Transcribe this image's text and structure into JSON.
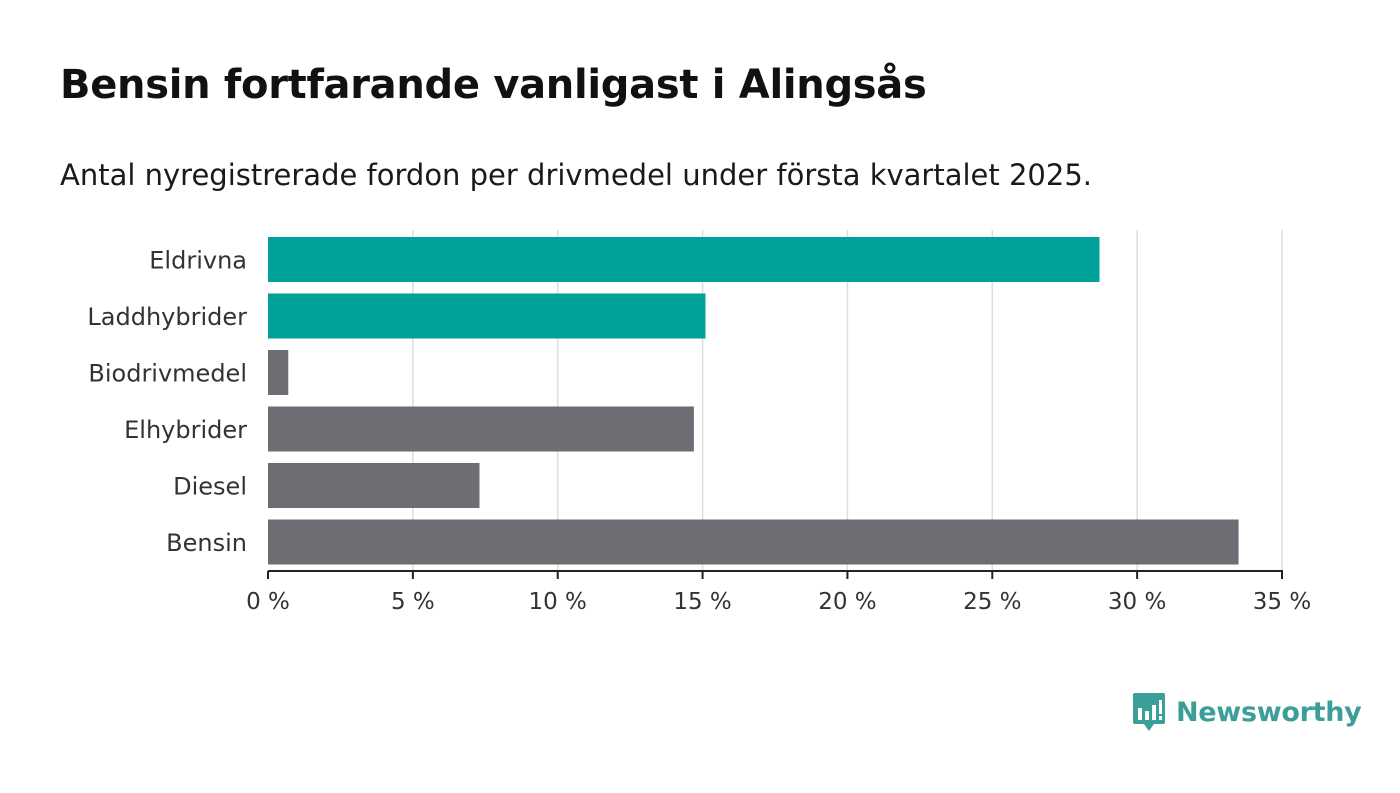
{
  "title": "Bensin fortfarande vanligast i Alingsås",
  "subtitle": "Antal nyregistrerade fordon per drivmedel under första kvartalet 2025.",
  "brand": {
    "name": "Newsworthy",
    "color": "#3b9e98",
    "icon": "bar-chart-speech-bubble-icon"
  },
  "colors": {
    "highlight": "#00a19a",
    "default": "#6e6d73",
    "grid": "#dddddd",
    "axis": "#222222",
    "label": "#333333"
  },
  "chart_data": {
    "type": "bar",
    "orientation": "horizontal",
    "categories": [
      "Eldrivna",
      "Laddhybrider",
      "Biodrivmedel",
      "Elhybrider",
      "Diesel",
      "Bensin"
    ],
    "values": [
      28.7,
      15.1,
      0.7,
      14.7,
      7.3,
      33.5
    ],
    "highlighted": [
      true,
      true,
      false,
      false,
      false,
      false
    ],
    "xlim": [
      0,
      35
    ],
    "ticks": [
      0,
      5,
      10,
      15,
      20,
      25,
      30,
      35
    ],
    "tick_labels": [
      "0 %",
      "5 %",
      "10 %",
      "15 %",
      "20 %",
      "25 %",
      "30 %",
      "35 %"
    ],
    "unit": "%",
    "grid": "vertical",
    "legend": "none"
  }
}
